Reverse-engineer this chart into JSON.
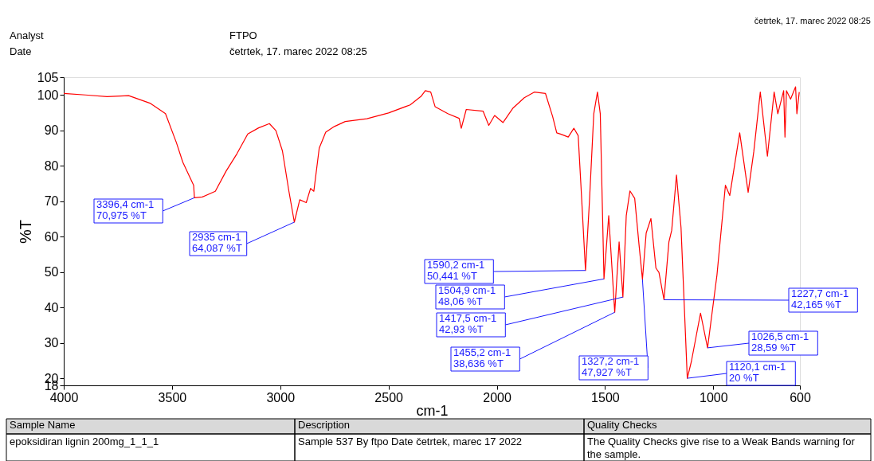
{
  "chart_data": {
    "type": "line",
    "xlabel": "cm-1",
    "ylabel": "%T",
    "x": [
      4000,
      3900,
      3800,
      3700,
      3599,
      3530,
      3480,
      3450,
      3400,
      3396.4,
      3360,
      3300,
      3250,
      3200,
      3150,
      3100,
      3050,
      3020,
      2990,
      2960,
      2935,
      2910,
      2880,
      2860,
      2845,
      2820,
      2790,
      2750,
      2700,
      2600,
      2500,
      2400,
      2350,
      2330,
      2305,
      2285,
      2226,
      2174,
      2164,
      2141,
      2063,
      2037,
      2010,
      1971,
      1925,
      1873,
      1827,
      1775,
      1742,
      1723,
      1703,
      1670,
      1644,
      1624,
      1611,
      1590.2,
      1572,
      1552,
      1535,
      1522,
      1504.9,
      1483,
      1455.2,
      1435,
      1417.5,
      1402,
      1385,
      1363,
      1343,
      1327.2,
      1310,
      1288,
      1265,
      1251,
      1227.7,
      1205,
      1192,
      1170,
      1149,
      1120.1,
      1101,
      1059,
      1026.5,
      983,
      944,
      924,
      878,
      839,
      813,
      783,
      750,
      719,
      702,
      675,
      669,
      662,
      643,
      620,
      614,
      603
    ],
    "series": [
      {
        "color": "#ff0000",
        "values": [
          100.4,
          100,
          99.5,
          99.8,
          97.6,
          94.7,
          86.6,
          81,
          74.5,
          70.975,
          71.2,
          72.8,
          78.5,
          83.4,
          89,
          90.7,
          91.9,
          89.9,
          84.2,
          72.8,
          64.087,
          70.4,
          69.6,
          73.6,
          72.8,
          85,
          89.5,
          91.1,
          92.5,
          93.3,
          94.9,
          97.2,
          99.6,
          101.2,
          100.8,
          96.7,
          94.7,
          93.4,
          90.6,
          95.9,
          95.4,
          91.4,
          94.2,
          92.2,
          96.3,
          99.2,
          100.8,
          100.4,
          93.9,
          89.3,
          88.9,
          88.1,
          90.6,
          88.5,
          74.1,
          50.441,
          70,
          94.7,
          100.8,
          94.7,
          48.06,
          65.9,
          38.636,
          58.5,
          42.93,
          65.9,
          72.9,
          70.8,
          57.7,
          47.927,
          61,
          65.1,
          51.1,
          49.9,
          42.165,
          58.5,
          61.8,
          77.4,
          62.5,
          20,
          24.8,
          38.4,
          28.59,
          49.2,
          74.5,
          71.6,
          89.3,
          72.5,
          84,
          100.8,
          82.7,
          100.8,
          94.7,
          101.2,
          88.1,
          101.2,
          98.8,
          102.3,
          94.7,
          100.8
        ]
      }
    ],
    "xlim": [
      4000,
      600
    ],
    "ylim": [
      18,
      105
    ],
    "xticks": [
      4000,
      3500,
      3000,
      2500,
      2000,
      1500,
      1000,
      600
    ],
    "yticks": [
      18,
      20,
      30,
      40,
      50,
      60,
      70,
      80,
      90,
      100,
      105
    ],
    "annotations": [
      "Analyst",
      "FTPO",
      "Date",
      "četrtek, 17. marec 2022 08:25",
      "četrtek, 17. marec 2022 08:25",
      "Sample Name",
      "Description",
      "Quality Checks",
      "epoksidiran lignin 200mg_1_1_1",
      "Sample 537 By ftpo Date četrtek, marec 17 2022",
      "The Quality Checks give rise to a Weak Bands warning for the sample.",
      {
        "text": "3396,4 cm-1\n70,975 %T",
        "x": 3396.4,
        "y": 70.975
      },
      {
        "text": "2935 cm-1\n64,087 %T",
        "x": 2935,
        "y": 64.087
      },
      {
        "text": "1590,2 cm-1\n50,441 %T",
        "x": 1590.2,
        "y": 50.441
      },
      {
        "text": "1504,9 cm-1\n48,06 %T",
        "x": 1504.9,
        "y": 48.06
      },
      {
        "text": "1455,2 cm-1\n38,636 %T",
        "x": 1455.2,
        "y": 38.636
      },
      {
        "text": "1417,5 cm-1\n42,93 %T",
        "x": 1417.5,
        "y": 42.93
      },
      {
        "text": "1327,2 cm-1\n47,927 %T",
        "x": 1327.2,
        "y": 47.927
      },
      {
        "text": "1227,7 cm-1\n42,165 %T",
        "x": 1227.7,
        "y": 42.165
      },
      {
        "text": "1120,1 cm-1\n20 %T",
        "x": 1120.1,
        "y": 20
      },
      {
        "text": "1026,5 cm-1\n28,59 %T",
        "x": 1026.5,
        "y": 28.59
      }
    ]
  }
}
